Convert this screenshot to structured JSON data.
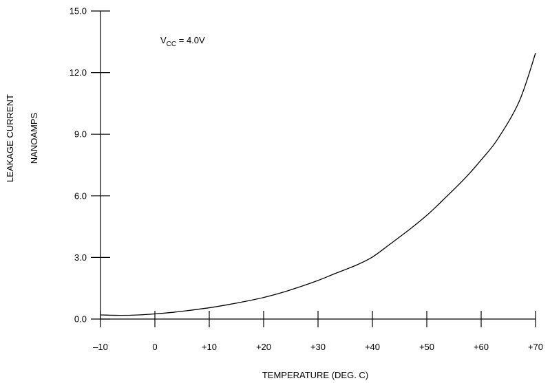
{
  "chart_data": {
    "type": "line",
    "xlabel": "TEMPERATURE (DEG. C)",
    "ylabel_line1": "LEAKAGE CURRENT",
    "ylabel_line2": "NANOAMPS",
    "annotation": {
      "main": "V",
      "sub": "CC",
      "rest": " = 4.0V"
    },
    "xlim": [
      -10,
      70
    ],
    "ylim": [
      0,
      15
    ],
    "x_ticks": [
      -10,
      0,
      10,
      20,
      30,
      40,
      50,
      60,
      70
    ],
    "x_tick_labels": [
      "–10",
      "0",
      "+10",
      "+20",
      "+30",
      "+40",
      "+50",
      "+60",
      "+70"
    ],
    "y_ticks": [
      0,
      3,
      6,
      9,
      12,
      15
    ],
    "y_tick_labels": [
      "0.0",
      "3.0",
      "6.0",
      "9.0",
      "12.0",
      "15.0"
    ],
    "grid": false,
    "series": [
      {
        "x": [
          -10,
          -6,
          -3,
          0,
          3,
          6,
          10,
          13,
          17,
          20,
          24,
          27,
          30,
          33,
          37,
          40,
          43,
          47,
          50,
          53,
          57,
          60,
          63,
          67,
          70
        ],
        "y": [
          0.2,
          0.18,
          0.2,
          0.25,
          0.32,
          0.41,
          0.55,
          0.68,
          0.88,
          1.05,
          1.34,
          1.6,
          1.88,
          2.2,
          2.62,
          3.02,
          3.6,
          4.4,
          5.05,
          5.8,
          6.85,
          7.75,
          8.75,
          10.6,
          12.95
        ]
      }
    ]
  }
}
